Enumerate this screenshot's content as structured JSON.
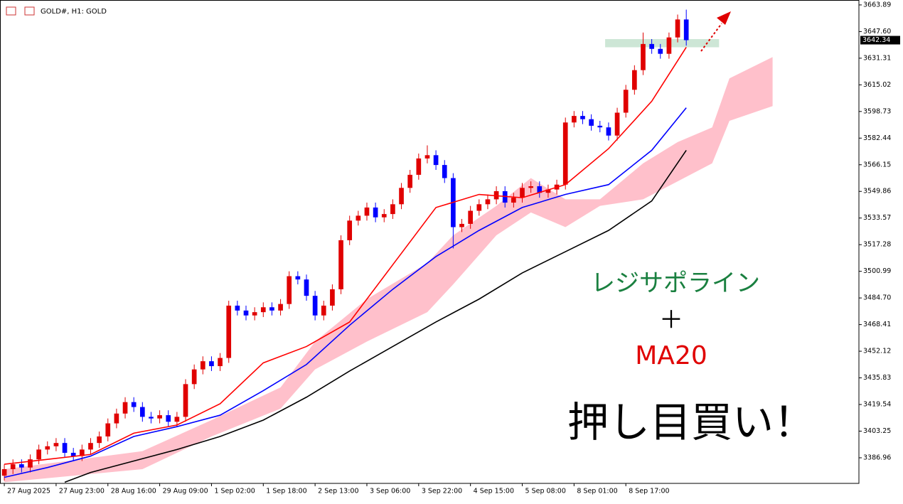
{
  "chart_data": {
    "type": "candlestick",
    "title": "GOLD#, H1:  GOLD",
    "annotations": [
      "レジサポライン",
      "＋",
      "MA20",
      "押し目買い！"
    ],
    "up_color": "#e00000",
    "down_color": "#0000ff",
    "candles": {
      "open": [
        3376,
        3380,
        3383,
        3381,
        3386,
        3392,
        3394,
        3396,
        3390,
        3388,
        3392,
        3396,
        3400,
        3408,
        3414,
        3421,
        3418,
        3412,
        3411,
        3413,
        3409,
        3412,
        3432,
        3441,
        3446,
        3443,
        3448,
        3480,
        3477,
        3474,
        3476,
        3479,
        3477,
        3481,
        3498,
        3496,
        3486,
        3474,
        3480,
        3490,
        3520,
        3532,
        3535,
        3540,
        3534,
        3536,
        3542,
        3552,
        3560,
        3570,
        3572,
        3566,
        3558,
        3528,
        3530,
        3538,
        3542,
        3545,
        3550,
        3543,
        3546,
        3552,
        3553,
        3549,
        3551,
        3554,
        3592,
        3596,
        3594,
        3590,
        3589,
        3584,
        3598,
        3612,
        3624,
        3640,
        3637,
        3634,
        3644,
        3655
      ],
      "high": [
        3383,
        3386,
        3386,
        3389,
        3395,
        3397,
        3399,
        3399,
        3393,
        3395,
        3399,
        3403,
        3411,
        3417,
        3424,
        3424,
        3421,
        3415,
        3416,
        3416,
        3415,
        3435,
        3444,
        3449,
        3449,
        3451,
        3483,
        3483,
        3480,
        3479,
        3482,
        3482,
        3484,
        3501,
        3501,
        3499,
        3489,
        3483,
        3493,
        3523,
        3535,
        3538,
        3543,
        3543,
        3539,
        3545,
        3555,
        3563,
        3573,
        3578,
        3575,
        3569,
        3561,
        3533,
        3541,
        3545,
        3548,
        3553,
        3553,
        3549,
        3555,
        3556,
        3556,
        3554,
        3557,
        3595,
        3599,
        3599,
        3597,
        3593,
        3592,
        3601,
        3615,
        3627,
        3647,
        3643,
        3640,
        3647,
        3658,
        3661
      ],
      "low": [
        3373,
        3377,
        3378,
        3378,
        3383,
        3389,
        3391,
        3387,
        3385,
        3385,
        3389,
        3393,
        3397,
        3405,
        3411,
        3415,
        3409,
        3408,
        3408,
        3406,
        3406,
        3409,
        3429,
        3438,
        3440,
        3440,
        3445,
        3474,
        3471,
        3471,
        3473,
        3474,
        3474,
        3478,
        3493,
        3483,
        3471,
        3471,
        3477,
        3487,
        3517,
        3529,
        3532,
        3531,
        3531,
        3533,
        3539,
        3549,
        3557,
        3567,
        3563,
        3555,
        3515,
        3525,
        3527,
        3535,
        3539,
        3542,
        3540,
        3540,
        3543,
        3549,
        3546,
        3546,
        3548,
        3551,
        3589,
        3591,
        3587,
        3586,
        3581,
        3581,
        3595,
        3609,
        3621,
        3634,
        3631,
        3631,
        3641,
        3639
      ],
      "close": [
        3380,
        3383,
        3381,
        3386,
        3392,
        3394,
        3396,
        3390,
        3388,
        3392,
        3396,
        3400,
        3408,
        3414,
        3421,
        3418,
        3412,
        3411,
        3413,
        3409,
        3412,
        3432,
        3441,
        3446,
        3443,
        3448,
        3480,
        3477,
        3474,
        3476,
        3479,
        3477,
        3481,
        3498,
        3496,
        3486,
        3474,
        3480,
        3490,
        3520,
        3532,
        3535,
        3540,
        3534,
        3536,
        3542,
        3552,
        3560,
        3570,
        3572,
        3566,
        3558,
        3528,
        3530,
        3538,
        3542,
        3545,
        3550,
        3543,
        3546,
        3552,
        3553,
        3549,
        3551,
        3554,
        3592,
        3596,
        3594,
        3590,
        3589,
        3584,
        3598,
        3612,
        3624,
        3640,
        3637,
        3634,
        3644,
        3655,
        3642.34
      ]
    },
    "lines": [
      {
        "color": "#ff0000",
        "x": [
          0,
          5,
          10,
          15,
          20,
          25,
          30,
          35,
          40,
          45,
          50,
          55,
          60,
          65,
          70,
          75,
          79
        ],
        "values": [
          3383,
          3386,
          3389,
          3402,
          3407,
          3420,
          3445,
          3455,
          3470,
          3505,
          3540,
          3548,
          3546,
          3554,
          3576,
          3605,
          3638
        ]
      },
      {
        "color": "#0000ff",
        "x": [
          0,
          5,
          10,
          15,
          20,
          25,
          30,
          35,
          40,
          45,
          50,
          55,
          60,
          65,
          70,
          75,
          79
        ],
        "values": [
          3375,
          3381,
          3388,
          3400,
          3406,
          3413,
          3428,
          3444,
          3468,
          3490,
          3510,
          3526,
          3540,
          3548,
          3554,
          3575,
          3601
        ]
      },
      {
        "color": "#000000",
        "x": [
          7,
          10,
          15,
          20,
          25,
          30,
          35,
          40,
          45,
          50,
          55,
          60,
          65,
          70,
          75,
          79
        ],
        "values": [
          3372,
          3378,
          3385,
          3392,
          3400,
          3410,
          3424,
          3440,
          3455,
          3470,
          3484,
          3500,
          3513,
          3526,
          3544,
          3575
        ]
      }
    ],
    "cloud": {
      "color": "#ffc0cb",
      "x": [
        0,
        16,
        24,
        32,
        36,
        42,
        49,
        52,
        57,
        61,
        65,
        69,
        74,
        78,
        82,
        84,
        89
      ],
      "upper": [
        3380,
        3391,
        3410,
        3430,
        3458,
        3484,
        3506,
        3523,
        3541,
        3558,
        3545,
        3545,
        3567,
        3580,
        3589,
        3619,
        3632
      ],
      "lower": [
        3372,
        3380,
        3400,
        3417,
        3441,
        3458,
        3476,
        3493,
        3523,
        3537,
        3528,
        3541,
        3545,
        3556,
        3567,
        3593,
        3602
      ]
    },
    "zone": {
      "color": "#cde6d6",
      "x": [
        69.6,
        82.8
      ],
      "y": [
        3638,
        3643
      ]
    },
    "xlim": [
      -0.5,
      99
    ],
    "ylim": [
      3371.3,
      3666.9
    ],
    "xticks": [
      {
        "value": 0,
        "label": "27 Aug 2025"
      },
      {
        "value": 6,
        "label": "27 Aug 23:00"
      },
      {
        "value": 12,
        "label": "28 Aug 16:00"
      },
      {
        "value": 18,
        "label": "29 Aug 09:00"
      },
      {
        "value": 24,
        "label": "1 Sep 02:00"
      },
      {
        "value": 30,
        "label": "1 Sep 18:00"
      },
      {
        "value": 36,
        "label": "2 Sep 13:00"
      },
      {
        "value": 42,
        "label": "3 Sep 06:00"
      },
      {
        "value": 48,
        "label": "3 Sep 22:00"
      },
      {
        "value": 54,
        "label": "4 Sep 15:00"
      },
      {
        "value": 60,
        "label": "5 Sep 08:00"
      },
      {
        "value": 66,
        "label": "8 Sep 01:00"
      },
      {
        "value": 72,
        "label": "8 Sep 17:00"
      }
    ],
    "yticks": [
      3663.89,
      {
        "value": 3647.6,
        "label": "3647.60"
      },
      3631.31,
      3615.02,
      3598.73,
      3582.44,
      3566.15,
      3549.86,
      3533.57,
      3517.28,
      3500.99,
      {
        "value": 3484.7,
        "label": "3484.70"
      },
      3468.41,
      3452.12,
      3435.83,
      3419.54,
      3403.25,
      3386.96
    ]
  }
}
